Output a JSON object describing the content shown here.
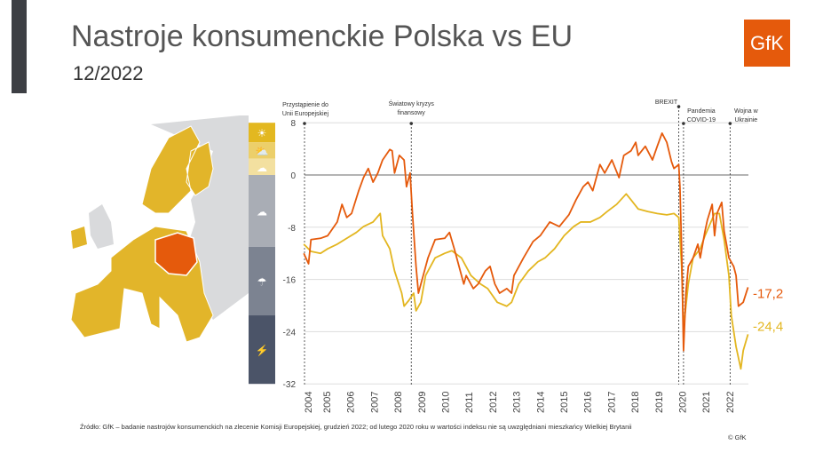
{
  "header": {
    "title": "Nastroje konsumenckie Polska vs EU",
    "subtitle": "12/2022",
    "logo": "GfK"
  },
  "footer": {
    "source": "Źródło: GfK – badanie nastrojów konsumenckich na zlecenie Komisji Europejskiej, grudzień 2022; od lutego 2020 roku w wartości indeksu nie są uwzględniani mieszkańcy Wielkiej Brytanii",
    "copyright": "© GfK"
  },
  "colors": {
    "poland": "#e55a0c",
    "eu": "#e3b620",
    "map_eu": "#e2b52a",
    "map_other": "#d9dadc"
  },
  "scale_icons": [
    "sun-icon",
    "sun-cloud-icon",
    "cloud-icon",
    "cloud-icon",
    "rain-cloud-icon",
    "storm-cloud-icon"
  ],
  "chart_data": {
    "type": "line",
    "title": "Nastroje konsumenckie Polska vs EU",
    "ylim": [
      -32,
      8
    ],
    "yticks": [
      8,
      0,
      -8,
      -16,
      -24,
      -32
    ],
    "xlim": [
      2004.33,
      2022.95
    ],
    "xticks": [
      "2004",
      "2005",
      "2006",
      "2007",
      "2008",
      "2009",
      "2010",
      "2011",
      "2012",
      "2013",
      "2014",
      "2015",
      "2016",
      "2017",
      "2018",
      "2019",
      "2020",
      "2021",
      "2022"
    ],
    "events": [
      {
        "year": 2004.33,
        "label": [
          "Przystąpienie do",
          "Unii Europejskiej"
        ]
      },
      {
        "year": 2008.8,
        "label": [
          "Światowy kryzys",
          "finansowy"
        ]
      },
      {
        "year": 2020.0,
        "label": [
          "BREXIT"
        ]
      },
      {
        "year": 2020.2,
        "label": [
          "Pandemia",
          "COVID-19"
        ]
      },
      {
        "year": 2022.15,
        "label": [
          "Wojna w",
          "Ukrainie"
        ]
      }
    ],
    "series": [
      {
        "name": "Polska",
        "end_label": "-17,2",
        "color": "#e55a0c",
        "points": [
          [
            2004.3,
            -12
          ],
          [
            2004.5,
            -13.6
          ],
          [
            2004.6,
            -9.9
          ],
          [
            2005.0,
            -9.7
          ],
          [
            2005.3,
            -9.3
          ],
          [
            2005.7,
            -7.2
          ],
          [
            2005.9,
            -4.5
          ],
          [
            2006.1,
            -6.5
          ],
          [
            2006.3,
            -5.9
          ],
          [
            2006.6,
            -2.4
          ],
          [
            2006.8,
            -0.4
          ],
          [
            2007.0,
            1.0
          ],
          [
            2007.2,
            -1.1
          ],
          [
            2007.4,
            0.3
          ],
          [
            2007.6,
            2.3
          ],
          [
            2007.9,
            3.9
          ],
          [
            2008.0,
            3.7
          ],
          [
            2008.1,
            0.3
          ],
          [
            2008.3,
            3.0
          ],
          [
            2008.5,
            2.3
          ],
          [
            2008.6,
            -1.8
          ],
          [
            2008.75,
            0.3
          ],
          [
            2008.85,
            -5.9
          ],
          [
            2009.0,
            -14.0
          ],
          [
            2009.1,
            -18.1
          ],
          [
            2009.3,
            -15.4
          ],
          [
            2009.5,
            -12.7
          ],
          [
            2009.8,
            -9.9
          ],
          [
            2010.2,
            -9.7
          ],
          [
            2010.4,
            -8.8
          ],
          [
            2010.6,
            -11.3
          ],
          [
            2010.8,
            -14.0
          ],
          [
            2011.0,
            -16.7
          ],
          [
            2011.1,
            -15.4
          ],
          [
            2011.4,
            -17.4
          ],
          [
            2011.6,
            -16.7
          ],
          [
            2011.9,
            -14.7
          ],
          [
            2012.1,
            -14.0
          ],
          [
            2012.3,
            -16.7
          ],
          [
            2012.5,
            -18.1
          ],
          [
            2012.8,
            -17.4
          ],
          [
            2013.0,
            -18.1
          ],
          [
            2013.1,
            -15.4
          ],
          [
            2013.5,
            -12.7
          ],
          [
            2013.9,
            -10.2
          ],
          [
            2014.2,
            -9.3
          ],
          [
            2014.6,
            -7.2
          ],
          [
            2015.0,
            -7.9
          ],
          [
            2015.4,
            -6.1
          ],
          [
            2015.7,
            -3.8
          ],
          [
            2016.0,
            -1.8
          ],
          [
            2016.2,
            -1.1
          ],
          [
            2016.4,
            -2.4
          ],
          [
            2016.7,
            1.6
          ],
          [
            2016.9,
            0.3
          ],
          [
            2017.2,
            2.3
          ],
          [
            2017.5,
            -0.4
          ],
          [
            2017.7,
            3.0
          ],
          [
            2018.0,
            3.7
          ],
          [
            2018.2,
            5.0
          ],
          [
            2018.3,
            3.0
          ],
          [
            2018.6,
            4.4
          ],
          [
            2018.9,
            2.3
          ],
          [
            2019.1,
            4.4
          ],
          [
            2019.3,
            6.4
          ],
          [
            2019.5,
            5.0
          ],
          [
            2019.7,
            2.0
          ],
          [
            2019.8,
            1.0
          ],
          [
            2020.0,
            1.6
          ],
          [
            2020.05,
            -1.8
          ],
          [
            2020.12,
            -11.3
          ],
          [
            2020.2,
            -26.9
          ],
          [
            2020.3,
            -18.1
          ],
          [
            2020.4,
            -14.0
          ],
          [
            2020.6,
            -12.7
          ],
          [
            2020.8,
            -10.6
          ],
          [
            2020.9,
            -12.7
          ],
          [
            2021.1,
            -8.6
          ],
          [
            2021.2,
            -6.9
          ],
          [
            2021.4,
            -4.5
          ],
          [
            2021.5,
            -9.3
          ],
          [
            2021.6,
            -5.9
          ],
          [
            2021.8,
            -4.2
          ],
          [
            2021.9,
            -8.6
          ],
          [
            2022.0,
            -10.6
          ],
          [
            2022.1,
            -12.7
          ],
          [
            2022.3,
            -14.0
          ],
          [
            2022.4,
            -15.4
          ],
          [
            2022.5,
            -20.1
          ],
          [
            2022.7,
            -19.5
          ],
          [
            2022.9,
            -17.2
          ]
        ]
      },
      {
        "name": "EU",
        "end_label": "-24,4",
        "color": "#e3b620",
        "points": [
          [
            2004.3,
            -10.6
          ],
          [
            2004.6,
            -11.7
          ],
          [
            2005.0,
            -12.0
          ],
          [
            2005.3,
            -11.3
          ],
          [
            2005.7,
            -10.6
          ],
          [
            2006.1,
            -9.7
          ],
          [
            2006.5,
            -8.8
          ],
          [
            2006.8,
            -7.9
          ],
          [
            2007.2,
            -7.2
          ],
          [
            2007.5,
            -5.9
          ],
          [
            2007.6,
            -9.3
          ],
          [
            2007.9,
            -11.3
          ],
          [
            2008.1,
            -14.7
          ],
          [
            2008.4,
            -18.1
          ],
          [
            2008.5,
            -20.1
          ],
          [
            2008.7,
            -19.2
          ],
          [
            2008.9,
            -18.1
          ],
          [
            2009.0,
            -20.8
          ],
          [
            2009.2,
            -19.5
          ],
          [
            2009.4,
            -15.4
          ],
          [
            2009.8,
            -12.7
          ],
          [
            2010.2,
            -12.0
          ],
          [
            2010.5,
            -11.6
          ],
          [
            2010.9,
            -12.7
          ],
          [
            2011.3,
            -15.4
          ],
          [
            2011.7,
            -16.7
          ],
          [
            2012.0,
            -17.4
          ],
          [
            2012.4,
            -19.5
          ],
          [
            2012.8,
            -20.1
          ],
          [
            2013.0,
            -19.5
          ],
          [
            2013.3,
            -16.7
          ],
          [
            2013.7,
            -14.7
          ],
          [
            2014.1,
            -13.3
          ],
          [
            2014.4,
            -12.7
          ],
          [
            2014.8,
            -11.3
          ],
          [
            2015.2,
            -9.3
          ],
          [
            2015.6,
            -7.9
          ],
          [
            2015.9,
            -7.2
          ],
          [
            2016.3,
            -7.2
          ],
          [
            2016.7,
            -6.5
          ],
          [
            2017.0,
            -5.6
          ],
          [
            2017.4,
            -4.5
          ],
          [
            2017.8,
            -2.9
          ],
          [
            2018.0,
            -3.8
          ],
          [
            2018.3,
            -5.2
          ],
          [
            2018.7,
            -5.6
          ],
          [
            2019.1,
            -5.9
          ],
          [
            2019.5,
            -6.1
          ],
          [
            2019.8,
            -5.9
          ],
          [
            2020.0,
            -6.5
          ],
          [
            2020.12,
            -14.0
          ],
          [
            2020.2,
            -23.5
          ],
          [
            2020.4,
            -16.7
          ],
          [
            2020.6,
            -12.7
          ],
          [
            2020.9,
            -11.3
          ],
          [
            2021.1,
            -9.3
          ],
          [
            2021.5,
            -5.9
          ],
          [
            2021.7,
            -5.9
          ],
          [
            2021.9,
            -9.9
          ],
          [
            2022.1,
            -15.4
          ],
          [
            2022.2,
            -21.5
          ],
          [
            2022.4,
            -26.3
          ],
          [
            2022.6,
            -29.7
          ],
          [
            2022.7,
            -26.9
          ],
          [
            2022.9,
            -24.4
          ]
        ]
      }
    ]
  }
}
